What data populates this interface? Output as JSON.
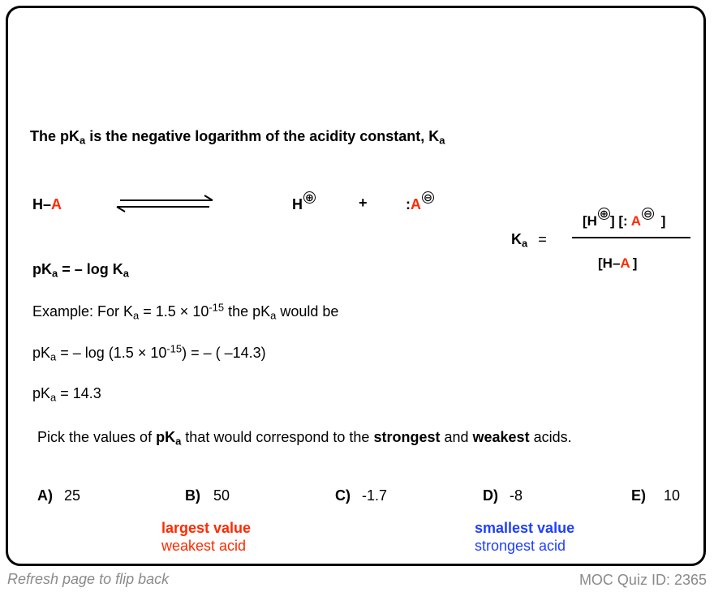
{
  "heading": {
    "part1": "The pK",
    "sub1": "a",
    "part2": " is the negative logarithm of the acidity constant, K",
    "sub2": "a"
  },
  "equilibrium": {
    "reactant_h": "H–",
    "reactant_a": "A",
    "product_h": "H",
    "plus_sign": "⊕",
    "plus": "+",
    "anion_colon": ":",
    "anion_a": "A",
    "minus_sign": "⊖"
  },
  "ka_expression": {
    "label": "K",
    "label_sub": "a",
    "equals": "=",
    "num_h": "[H",
    "num_plus": "⊕",
    "num_mid": "] [:",
    "num_a": "A",
    "num_minus": "⊖",
    "num_close": "]",
    "den_h": "[H–",
    "den_a": "A",
    "den_close": "]"
  },
  "pka_definition": {
    "p1": "pK",
    "s1": "a",
    "p2": " = – log K",
    "s2": "a"
  },
  "example": {
    "line1_a": "Example: For K",
    "line1_sub": "a",
    "line1_b": " = 1.5 × 10",
    "line1_sup": "-15",
    "line1_c": "  the pK",
    "line1_sub2": "a",
    "line1_d": " would be",
    "line2_a": "pK",
    "line2_sub": "a",
    "line2_b": " = – log (1.5 × 10",
    "line2_sup": "-15",
    "line2_c": ")  =  – ( –14.3)",
    "line3_a": "pK",
    "line3_sub": "a",
    "line3_b": " =  14.3"
  },
  "question": {
    "q1": "Pick the values of ",
    "q_pk": "pK",
    "q_sub": "a",
    "q2": " that would correspond to the ",
    "q_strong": "strongest",
    "q3": " and ",
    "q_weak": "weakest",
    "q4": " acids."
  },
  "options": [
    {
      "letter": "A)",
      "value": "25"
    },
    {
      "letter": "B)",
      "value": "50"
    },
    {
      "letter": "C)",
      "value": "-1.7"
    },
    {
      "letter": "D)",
      "value": "-8"
    },
    {
      "letter": "E)",
      "value": "10"
    }
  ],
  "answers": {
    "largest_title": "largest value",
    "largest_sub": "weakest acid",
    "smallest_title": "smallest value",
    "smallest_sub": "strongest acid"
  },
  "footer": {
    "left": "Refresh page to flip back",
    "right": "MOC Quiz ID: 2365"
  },
  "colors": {
    "red": "#ff2a00",
    "blue": "#1f3fff",
    "footer_gray": "#8a8a8a"
  }
}
